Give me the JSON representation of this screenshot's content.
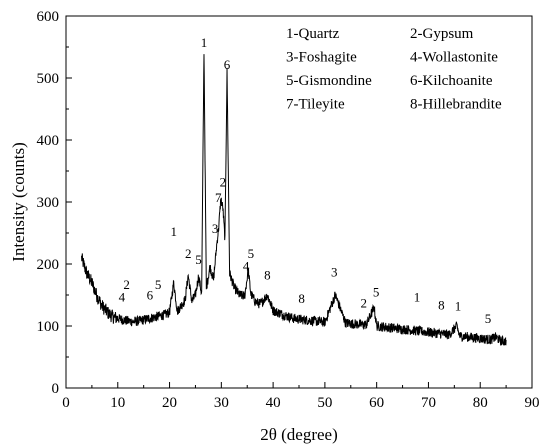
{
  "chart_data": {
    "type": "line",
    "xlabel": "2θ (degree)",
    "ylabel": "Intensity (counts)",
    "xlim": [
      0,
      90
    ],
    "ylim": [
      0,
      600
    ],
    "xticks": [
      "0",
      "10",
      "20",
      "30",
      "40",
      "50",
      "60",
      "70",
      "80",
      "90"
    ],
    "yticks": [
      "0",
      "100",
      "200",
      "300",
      "400",
      "500",
      "600"
    ],
    "grid": false,
    "legend_position": "top-right",
    "legend": [
      "1-Quartz",
      "2-Gypsum",
      "3-Foshagite",
      "4-Wollastonite",
      "5-Gismondine",
      "6-Kilchoanite",
      "7-Tileyite",
      "8-Hillebrandite"
    ],
    "series": [
      {
        "color": "#000000",
        "x": [
          3,
          4,
          5,
          6,
          7,
          8,
          9,
          10,
          11,
          12,
          13,
          14,
          15,
          16,
          17,
          18,
          19,
          20,
          20.8,
          21.5,
          22,
          23,
          23.6,
          24.3,
          25,
          25.6,
          26.2,
          26.65,
          27.1,
          27.8,
          28.5,
          29.1,
          29.5,
          29.9,
          30.3,
          30.7,
          31.1,
          31.6,
          32.5,
          33.5,
          34.5,
          35.2,
          35.7,
          36.5,
          37.5,
          38.9,
          40,
          42,
          44,
          46,
          48,
          50,
          52,
          54,
          56,
          58,
          59.5,
          60,
          62,
          64,
          66,
          68,
          70,
          72,
          74,
          75.5,
          76,
          78,
          80,
          82,
          83,
          84,
          85
        ],
        "y": [
          210,
          185,
          170,
          148,
          132,
          122,
          115,
          112,
          110,
          108,
          107,
          108,
          110,
          112,
          114,
          116,
          118,
          122,
          170,
          124,
          130,
          142,
          182,
          140,
          150,
          180,
          152,
          545,
          160,
          196,
          175,
          230,
          260,
          305,
          290,
          240,
          510,
          185,
          162,
          150,
          148,
          190,
          152,
          140,
          135,
          150,
          125,
          118,
          112,
          110,
          108,
          106,
          150,
          105,
          103,
          102,
          130,
          100,
          98,
          96,
          94,
          92,
          90,
          88,
          86,
          100,
          84,
          82,
          80,
          78,
          82,
          76,
          75
        ]
      }
    ],
    "annotations": [
      {
        "text": "1",
        "x": 26.65,
        "y": 545
      },
      {
        "text": "6",
        "x": 31.1,
        "y": 510
      },
      {
        "text": "2",
        "x": 30.3,
        "y": 320
      },
      {
        "text": "7",
        "x": 29.4,
        "y": 295
      },
      {
        "text": "3",
        "x": 28.8,
        "y": 245
      },
      {
        "text": "1",
        "x": 20.8,
        "y": 240
      },
      {
        "text": "2",
        "x": 23.6,
        "y": 205
      },
      {
        "text": "5",
        "x": 25.6,
        "y": 195
      },
      {
        "text": "5",
        "x": 35.7,
        "y": 205
      },
      {
        "text": "4",
        "x": 34.8,
        "y": 185
      },
      {
        "text": "8",
        "x": 38.9,
        "y": 170
      },
      {
        "text": "8",
        "x": 45.5,
        "y": 132
      },
      {
        "text": "3",
        "x": 51.8,
        "y": 175
      },
      {
        "text": "5",
        "x": 59.9,
        "y": 143
      },
      {
        "text": "2",
        "x": 57.5,
        "y": 125
      },
      {
        "text": "1",
        "x": 67.8,
        "y": 135
      },
      {
        "text": "8",
        "x": 72.5,
        "y": 122
      },
      {
        "text": "1",
        "x": 75.7,
        "y": 120
      },
      {
        "text": "5",
        "x": 81.5,
        "y": 100
      },
      {
        "text": "2",
        "x": 11.7,
        "y": 155
      },
      {
        "text": "4",
        "x": 10.8,
        "y": 135
      },
      {
        "text": "5",
        "x": 17.8,
        "y": 155
      },
      {
        "text": "6",
        "x": 16.2,
        "y": 138
      }
    ]
  }
}
